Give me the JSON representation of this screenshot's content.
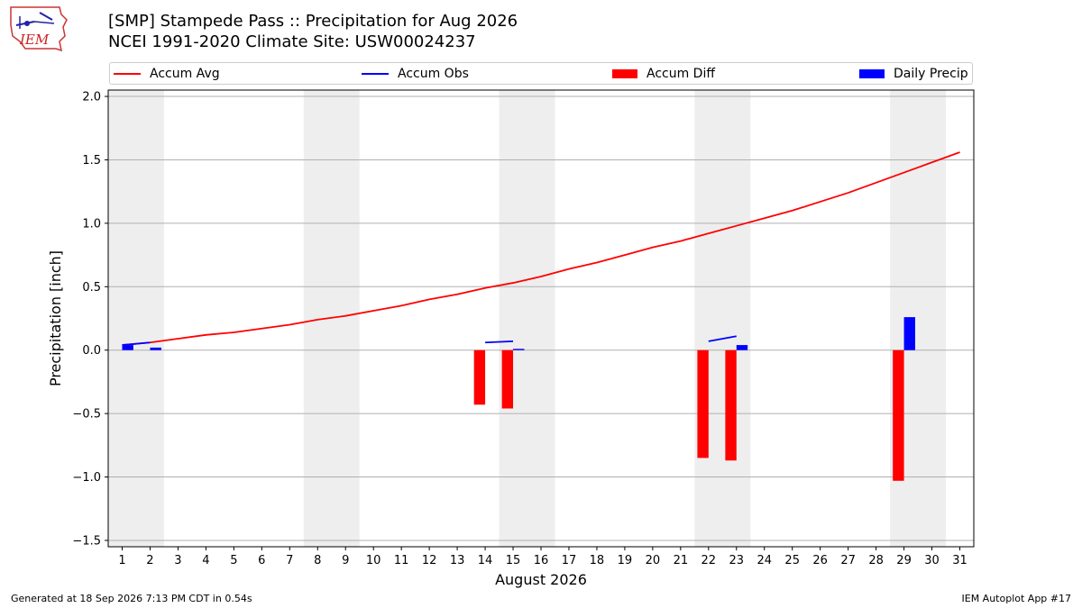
{
  "logo": {
    "text": "IEM"
  },
  "header": {
    "title_line1": "[SMP] Stampede Pass :: Precipitation for Aug 2026",
    "title_line2": "NCEI 1991-2020 Climate Site: USW00024237"
  },
  "legend": {
    "items": [
      {
        "label": "Accum Avg",
        "kind": "line",
        "color": "#ff0000"
      },
      {
        "label": "Accum Obs",
        "kind": "line",
        "color": "#0000ff"
      },
      {
        "label": "Accum Diff",
        "kind": "patch",
        "color": "#ff0000"
      },
      {
        "label": "Daily Precip",
        "kind": "patch",
        "color": "#0000ff"
      }
    ]
  },
  "footer": {
    "generated": "Generated at 18 Sep 2026 7:13 PM CDT in 0.54s",
    "app": "IEM Autoplot App #17"
  },
  "chart_data": {
    "type": "bar",
    "xlabel": "August 2026",
    "ylabel": "Precipitation [inch]",
    "xlim": [
      0.5,
      31.5
    ],
    "ylim": [
      -1.55,
      2.05
    ],
    "x_ticks": [
      1,
      2,
      3,
      4,
      5,
      6,
      7,
      8,
      9,
      10,
      11,
      12,
      13,
      14,
      15,
      16,
      17,
      18,
      19,
      20,
      21,
      22,
      23,
      24,
      25,
      26,
      27,
      28,
      29,
      30,
      31
    ],
    "y_ticks": [
      -1.5,
      -1.0,
      -0.5,
      0.0,
      0.5,
      1.0,
      1.5,
      2.0
    ],
    "y_tick_labels": [
      "−1.5",
      "−1.0",
      "−0.5",
      "0.0",
      "0.5",
      "1.0",
      "1.5",
      "2.0"
    ],
    "grid": "horizontal",
    "weekend_shading": [
      [
        0.5,
        2.5
      ],
      [
        7.5,
        9.5
      ],
      [
        14.5,
        16.5
      ],
      [
        21.5,
        23.5
      ],
      [
        28.5,
        30.5
      ]
    ],
    "shading_color": "#eeeeee",
    "series": [
      {
        "name": "Accum Avg",
        "type": "line",
        "color": "#ff0000",
        "x": [
          1,
          2,
          3,
          4,
          5,
          6,
          7,
          8,
          9,
          10,
          11,
          12,
          13,
          14,
          15,
          16,
          17,
          18,
          19,
          20,
          21,
          22,
          23,
          24,
          25,
          26,
          27,
          28,
          29,
          30,
          31
        ],
        "values": [
          0.04,
          0.06,
          0.09,
          0.12,
          0.14,
          0.17,
          0.2,
          0.24,
          0.27,
          0.31,
          0.35,
          0.4,
          0.44,
          0.49,
          0.53,
          0.58,
          0.64,
          0.69,
          0.75,
          0.81,
          0.86,
          0.92,
          0.98,
          1.04,
          1.1,
          1.17,
          1.24,
          1.32,
          1.4,
          1.48,
          1.56
        ]
      },
      {
        "name": "Accum Obs",
        "type": "line",
        "color": "#0000ff",
        "segments": [
          {
            "x": [
              1,
              2
            ],
            "values": [
              0.04,
              0.06
            ]
          },
          {
            "x": [
              14,
              15
            ],
            "values": [
              0.06,
              0.07
            ]
          },
          {
            "x": [
              22,
              23
            ],
            "values": [
              0.07,
              0.11
            ]
          }
        ]
      },
      {
        "name": "Accum Diff",
        "type": "bar",
        "color": "#ff0000",
        "offset": -0.2,
        "x": [
          14,
          15,
          22,
          23,
          29
        ],
        "values": [
          -0.43,
          -0.46,
          -0.85,
          -0.87,
          -1.03
        ]
      },
      {
        "name": "Daily Precip",
        "type": "bar",
        "color": "#0000ff",
        "offset": 0.2,
        "x": [
          1,
          2,
          15,
          23,
          29
        ],
        "values": [
          0.04,
          0.02,
          0.01,
          0.04,
          0.26
        ]
      }
    ]
  }
}
